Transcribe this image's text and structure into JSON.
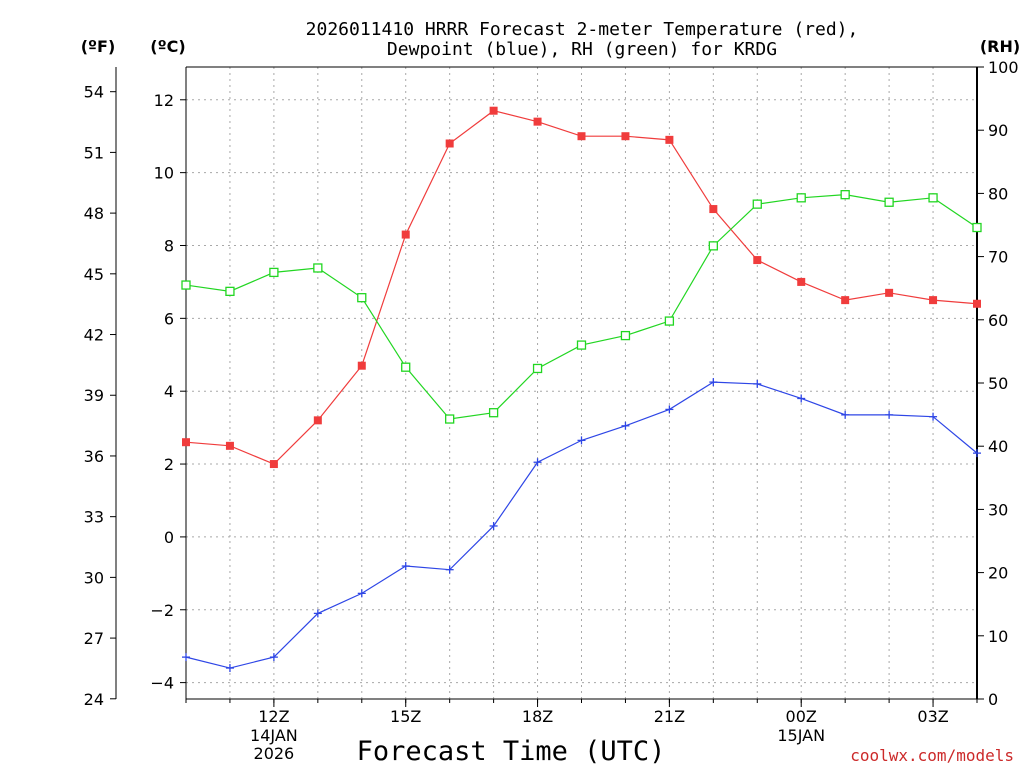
{
  "chart_data": {
    "type": "line",
    "title_line1": "2026011410 HRRR Forecast 2-meter Temperature (red),",
    "title_line2": "Dewpoint (blue), RH (green) for KRDG",
    "units": {
      "fahrenheit": "(ºF)",
      "celsius": "(ºC)",
      "rh": "(RH)"
    },
    "xlabel": "Forecast Time (UTC)",
    "credit": "coolwx.com/models",
    "x": [
      10,
      11,
      12,
      13,
      14,
      15,
      16,
      17,
      18,
      19,
      20,
      21,
      22,
      23,
      24,
      25,
      26,
      27,
      28
    ],
    "xlim": [
      10,
      28
    ],
    "x_ticks": [
      {
        "x": 12,
        "label": "12Z",
        "date1": "14JAN",
        "date2": "2026"
      },
      {
        "x": 15,
        "label": "15Z",
        "date1": "",
        "date2": ""
      },
      {
        "x": 18,
        "label": "18Z",
        "date1": "",
        "date2": ""
      },
      {
        "x": 21,
        "label": "21Z",
        "date1": "",
        "date2": ""
      },
      {
        "x": 24,
        "label": "00Z",
        "date1": "15JAN",
        "date2": ""
      },
      {
        "x": 27,
        "label": "03Z",
        "date1": "",
        "date2": ""
      }
    ],
    "y_celsius": {
      "ylim": [
        -4.45,
        12.9
      ],
      "ticks": [
        -4,
        -2,
        0,
        2,
        4,
        6,
        8,
        10,
        12
      ],
      "labels": [
        "−4",
        "−2",
        "0",
        "2",
        "4",
        "6",
        "8",
        "10",
        "12"
      ]
    },
    "y_fahrenheit": {
      "ylim": [
        23.99,
        55.22
      ],
      "ticks": [
        24,
        27,
        30,
        33,
        36,
        39,
        42,
        45,
        48,
        51,
        54
      ],
      "labels": [
        "24",
        "27",
        "30",
        "33",
        "36",
        "39",
        "42",
        "45",
        "48",
        "51",
        "54"
      ]
    },
    "y_rh": {
      "ylim": [
        0,
        100
      ],
      "ticks": [
        0,
        10,
        20,
        30,
        40,
        50,
        60,
        70,
        80,
        90,
        100
      ],
      "labels": [
        "0",
        "10",
        "20",
        "30",
        "40",
        "50",
        "60",
        "70",
        "80",
        "90",
        "100"
      ]
    },
    "series": [
      {
        "name": "Temperature (red)",
        "axis": "celsius",
        "color": "#f03c3c",
        "marker": "filled-square",
        "values": [
          2.6,
          2.5,
          2.0,
          3.2,
          4.7,
          8.3,
          10.8,
          11.7,
          11.4,
          11.0,
          11.0,
          10.9,
          9.0,
          7.6,
          7.0,
          6.5,
          6.7,
          6.5,
          6.4
        ]
      },
      {
        "name": "Dewpoint (blue)",
        "axis": "celsius",
        "color": "#2e46e6",
        "marker": "plus",
        "values": [
          -3.3,
          -3.6,
          -3.3,
          -2.1,
          -1.55,
          -0.8,
          -0.9,
          0.3,
          2.05,
          2.65,
          3.05,
          3.5,
          4.25,
          4.2,
          3.8,
          3.35,
          3.35,
          3.3,
          2.3
        ]
      },
      {
        "name": "RH (green)",
        "axis": "rh",
        "color": "#22d622",
        "marker": "open-square",
        "values": [
          65.5,
          64.5,
          67.5,
          68.2,
          63.5,
          52.5,
          44.3,
          45.3,
          52.3,
          56.0,
          57.5,
          59.8,
          71.7,
          78.3,
          79.3,
          79.8,
          78.6,
          79.3,
          74.6
        ]
      }
    ]
  }
}
